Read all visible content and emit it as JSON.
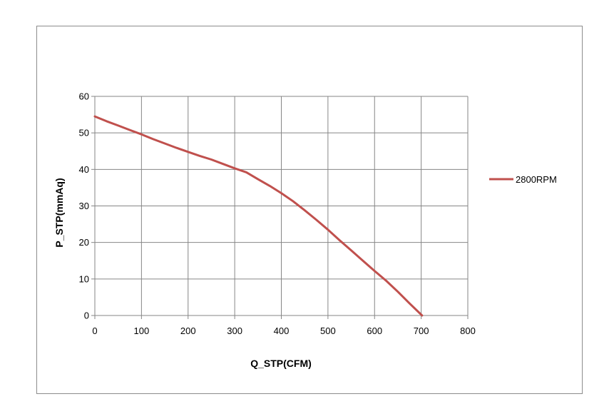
{
  "chart_data": {
    "type": "line",
    "title": "",
    "xlabel": "Q_STP(CFM)",
    "ylabel": "P_STP(mmAq)",
    "xlim": [
      0,
      800
    ],
    "ylim": [
      0,
      60
    ],
    "xticks": [
      0,
      100,
      200,
      300,
      400,
      500,
      600,
      700,
      800
    ],
    "yticks": [
      0,
      10,
      20,
      30,
      40,
      50,
      60
    ],
    "grid": true,
    "legend_position": "right",
    "series": [
      {
        "name": "2800RPM",
        "color": "#c0504d",
        "x": [
          0,
          25,
          50,
          75,
          100,
          125,
          150,
          175,
          200,
          225,
          250,
          275,
          300,
          325,
          350,
          375,
          400,
          425,
          450,
          475,
          500,
          525,
          550,
          575,
          600,
          625,
          650,
          675,
          702
        ],
        "y": [
          54.5,
          53.2,
          52.0,
          50.8,
          49.6,
          48.3,
          47.1,
          45.9,
          44.8,
          43.7,
          42.7,
          41.5,
          40.3,
          39.2,
          37.3,
          35.5,
          33.5,
          31.3,
          28.8,
          26.2,
          23.5,
          20.6,
          17.8,
          15.0,
          12.2,
          9.5,
          6.5,
          3.3,
          0.0
        ]
      }
    ]
  }
}
